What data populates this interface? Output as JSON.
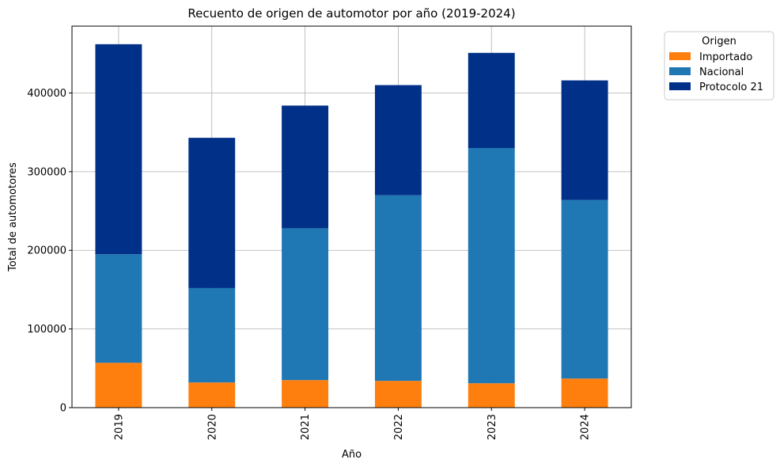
{
  "chart_data": {
    "type": "bar",
    "stacked": true,
    "title": "Recuento de origen de automotor por año (2019-2024)",
    "xlabel": "Año",
    "ylabel": "Total de automotores",
    "categories": [
      "2019",
      "2020",
      "2021",
      "2022",
      "2023",
      "2024"
    ],
    "ylim": [
      0,
      485000
    ],
    "yticks": [
      0,
      100000,
      200000,
      300000,
      400000
    ],
    "ytick_labels": [
      "0",
      "100000",
      "200000",
      "300000",
      "400000"
    ],
    "grid": true,
    "legend": {
      "title": "Origen",
      "placement": "outside-top-right"
    },
    "series": [
      {
        "name": "Importado",
        "color": "#ff7f0e",
        "values": [
          57000,
          32000,
          35000,
          34000,
          31000,
          37000
        ]
      },
      {
        "name": "Nacional",
        "color": "#1f77b4",
        "values": [
          138000,
          120000,
          193000,
          236000,
          299000,
          227000
        ]
      },
      {
        "name": "Protocolo 21",
        "color": "#003087",
        "values": [
          267000,
          191000,
          156000,
          140000,
          121000,
          152000
        ]
      }
    ]
  }
}
